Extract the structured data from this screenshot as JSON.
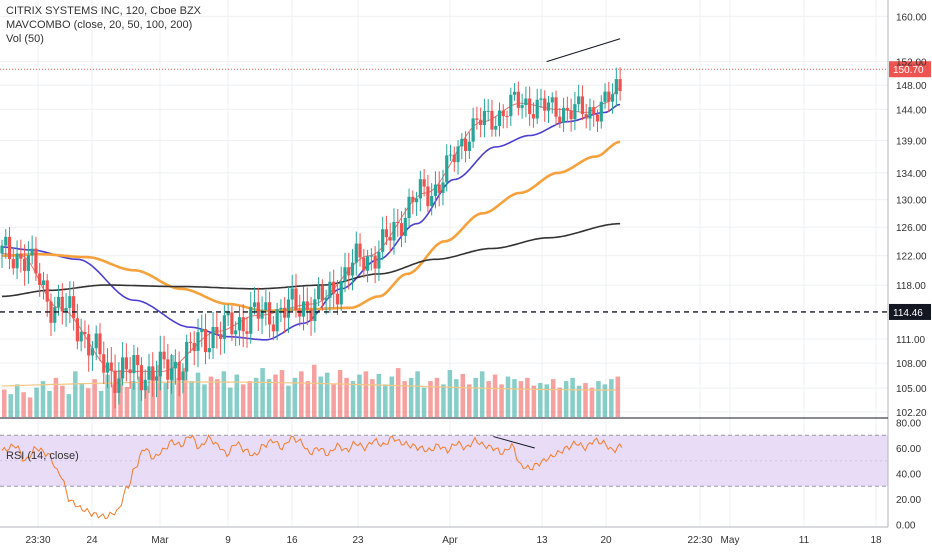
{
  "header": {
    "symbol_line": "CITRIX SYSTEMS INC, 120, Cboe BZX",
    "indicator_line": "MAVCOMBO (close, 20, 50, 100, 200)",
    "volume_line": "Vol (50)"
  },
  "rsi_panel": {
    "label": "RSI (14, close)"
  },
  "colors": {
    "up": "#26a69a",
    "down": "#ef5350",
    "ma20": "#e57373",
    "ma50": "#4b3fd1",
    "ma100": "#f6a13c",
    "ma200": "#333333",
    "rsi": "#f57c2b",
    "rsi_band": "#e9dcf6",
    "price_tag": "#ef5350",
    "level_tag": "#131722"
  },
  "chart_data": [
    {
      "type": "candlestick",
      "title": "CITRIX SYSTEMS INC, 120, Cboe BZX",
      "x_tick_labels": [
        "23:30",
        "24",
        "Mar",
        "9",
        "16",
        "23",
        "Apr",
        "13",
        "20",
        "22:30",
        "May",
        "11",
        "18"
      ],
      "y_tick_labels": [
        "160.00",
        "152.00",
        "148.00",
        "144.00",
        "139.00",
        "134.00",
        "130.00",
        "126.00",
        "122.00",
        "118.00",
        "111.00",
        "108.00",
        "105.00",
        "102.20"
      ],
      "y_scale": "log",
      "ylim": [
        101.5,
        163
      ],
      "current_price": 150.7,
      "horizontal_level": 114.46,
      "grid": true,
      "series": [
        {
          "name": "MAVCOMBO 20",
          "anchors": [
            [
              0,
              122.3
            ],
            [
              10,
              122.0
            ],
            [
              30,
              115
            ],
            [
              60,
              107
            ],
            [
              85,
              107
            ],
            [
              115,
              112
            ],
            [
              135,
              114
            ],
            [
              165,
              115.5
            ],
            [
              195,
              122
            ],
            [
              225,
              131
            ],
            [
              255,
              142
            ],
            [
              275,
              145
            ],
            [
              295,
              144
            ],
            [
              310,
              143.5
            ],
            [
              320,
              145
            ],
            [
              328,
              147.5
            ]
          ]
        },
        {
          "name": "MAVCOMBO 50",
          "anchors": [
            [
              0,
              123.2
            ],
            [
              15,
              122.8
            ],
            [
              40,
              121.5
            ],
            [
              70,
              116
            ],
            [
              100,
              112.5
            ],
            [
              120,
              111.3
            ],
            [
              140,
              110.9
            ],
            [
              160,
              113
            ],
            [
              180,
              117.5
            ],
            [
              200,
              121.5
            ],
            [
              220,
              126.5
            ],
            [
              240,
              133
            ],
            [
              262,
              138
            ],
            [
              280,
              139.8
            ],
            [
              300,
              142
            ],
            [
              320,
              143.5
            ],
            [
              328,
              144.8
            ]
          ]
        },
        {
          "name": "MAVCOMBO 100",
          "anchors": [
            [
              0,
              122
            ],
            [
              20,
              122.2
            ],
            [
              45,
              121.8
            ],
            [
              70,
              120
            ],
            [
              95,
              117.5
            ],
            [
              120,
              115.5
            ],
            [
              140,
              114.6
            ],
            [
              160,
              114.8
            ],
            [
              185,
              115
            ],
            [
              200,
              116.5
            ],
            [
              215,
              119.5
            ],
            [
              235,
              124
            ],
            [
              255,
              128
            ],
            [
              275,
              131
            ],
            [
              295,
              134
            ],
            [
              315,
              136.5
            ],
            [
              328,
              138.8
            ]
          ]
        },
        {
          "name": "MAVCOMBO 200",
          "anchors": [
            [
              0,
              116.5
            ],
            [
              25,
              117.3
            ],
            [
              55,
              118
            ],
            [
              95,
              117.8
            ],
            [
              135,
              117.5
            ],
            [
              170,
              118
            ],
            [
              200,
              119.5
            ],
            [
              230,
              121.5
            ],
            [
              260,
              123
            ],
            [
              290,
              124.5
            ],
            [
              328,
              126.5
            ]
          ]
        },
        {
          "name": "trendline",
          "points": [
            [
              289,
              152
            ],
            [
              328,
              156
            ]
          ]
        }
      ]
    },
    {
      "type": "bar",
      "title": "Vol (50)",
      "values": [
        0.42,
        0.35,
        0.5,
        0.38,
        0.3,
        0.45,
        0.55,
        0.4,
        0.6,
        0.48,
        0.35,
        0.7,
        0.52,
        0.44,
        0.58,
        0.4,
        0.65,
        0.5,
        0.72,
        0.46,
        0.55,
        0.62,
        0.48,
        0.7,
        0.8,
        0.52,
        0.95,
        0.6,
        0.75,
        0.55,
        0.68,
        0.5,
        0.62,
        0.58,
        0.7,
        0.45,
        0.65,
        0.5,
        0.55,
        0.6,
        0.75,
        0.58,
        0.65,
        0.72,
        0.48,
        0.6,
        0.7,
        0.55,
        0.8,
        0.62,
        0.68,
        0.5,
        0.72,
        0.6,
        0.55,
        0.65,
        0.7,
        0.58,
        0.66,
        0.5,
        0.62,
        0.75,
        0.55,
        0.6,
        0.7,
        0.45,
        0.55,
        0.6,
        0.5,
        0.72,
        0.58,
        0.66,
        0.5,
        0.6,
        0.7,
        0.55,
        0.65,
        0.5,
        0.62,
        0.58,
        0.55,
        0.6,
        0.48,
        0.52,
        0.5,
        0.58,
        0.45,
        0.55,
        0.6,
        0.48,
        0.52,
        0.45,
        0.55,
        0.5,
        0.58,
        0.62
      ]
    },
    {
      "type": "line",
      "title": "RSI (14, close)",
      "y_tick_labels": [
        "80.00",
        "60.00",
        "40.00",
        "20.00",
        "0.00"
      ],
      "ylim": [
        -2,
        82
      ],
      "bands": [
        70,
        30
      ],
      "series": [
        {
          "name": "RSI",
          "anchors": [
            [
              0,
              58
            ],
            [
              6,
              62
            ],
            [
              10,
              50
            ],
            [
              15,
              60
            ],
            [
              20,
              55
            ],
            [
              25,
              40
            ],
            [
              30,
              18
            ],
            [
              35,
              12
            ],
            [
              40,
              8
            ],
            [
              45,
              6
            ],
            [
              50,
              10
            ],
            [
              55,
              30
            ],
            [
              58,
              45
            ],
            [
              62,
              60
            ],
            [
              66,
              52
            ],
            [
              70,
              58
            ],
            [
              74,
              65
            ],
            [
              78,
              62
            ],
            [
              82,
              70
            ],
            [
              86,
              60
            ],
            [
              90,
              68
            ],
            [
              94,
              62
            ],
            [
              98,
              55
            ],
            [
              102,
              64
            ],
            [
              106,
              58
            ],
            [
              110,
              54
            ],
            [
              114,
              62
            ],
            [
              118,
              66
            ],
            [
              122,
              60
            ],
            [
              126,
              68
            ],
            [
              130,
              65
            ],
            [
              134,
              56
            ],
            [
              138,
              60
            ],
            [
              142,
              55
            ],
            [
              146,
              62
            ],
            [
              150,
              58
            ],
            [
              154,
              64
            ],
            [
              158,
              60
            ],
            [
              162,
              66
            ],
            [
              166,
              62
            ],
            [
              170,
              68
            ],
            [
              174,
              64
            ],
            [
              178,
              62
            ],
            [
              182,
              60
            ],
            [
              186,
              58
            ],
            [
              190,
              62
            ],
            [
              194,
              58
            ],
            [
              198,
              64
            ],
            [
              202,
              60
            ],
            [
              206,
              66
            ],
            [
              210,
              62
            ],
            [
              214,
              60
            ],
            [
              218,
              56
            ],
            [
              222,
              62
            ],
            [
              226,
              46
            ],
            [
              230,
              44
            ],
            [
              234,
              48
            ],
            [
              238,
              52
            ],
            [
              242,
              56
            ],
            [
              246,
              60
            ],
            [
              250,
              64
            ],
            [
              254,
              60
            ],
            [
              258,
              66
            ],
            [
              262,
              64
            ],
            [
              266,
              58
            ],
            [
              270,
              62
            ]
          ]
        },
        {
          "name": "trendline",
          "points": [
            [
              214,
              69
            ],
            [
              232,
              60
            ]
          ]
        }
      ]
    }
  ]
}
